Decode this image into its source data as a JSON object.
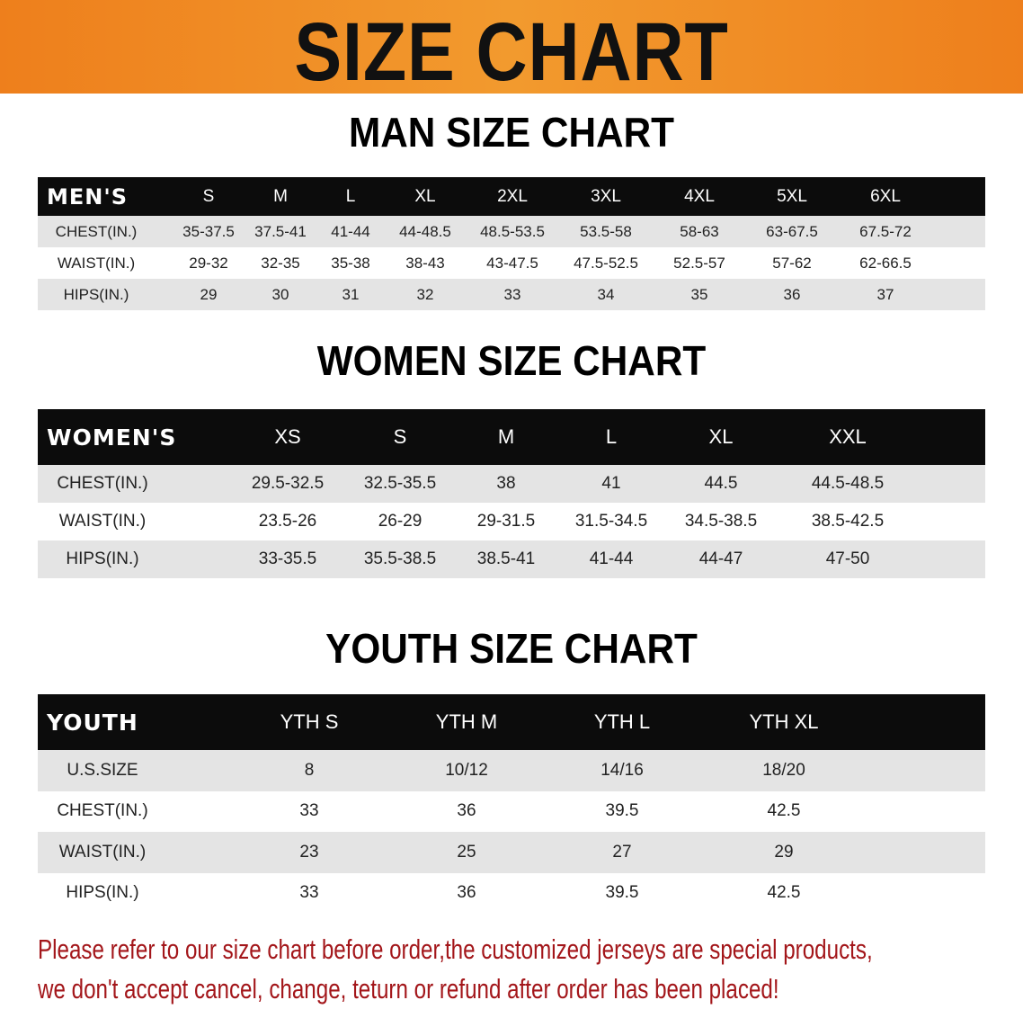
{
  "banner": {
    "title": "SIZE CHART",
    "color": "#ee7f1c"
  },
  "men": {
    "title": "MAN SIZE CHART",
    "header_label": "MEN'S",
    "sizes": [
      "S",
      "M",
      "L",
      "XL",
      "2XL",
      "3XL",
      "4XL",
      "5XL",
      "6XL"
    ],
    "rows": [
      {
        "label": "CHEST(IN.)",
        "values": [
          "35-37.5",
          "37.5-41",
          "41-44",
          "44-48.5",
          "48.5-53.5",
          "53.5-58",
          "58-63",
          "63-67.5",
          "67.5-72"
        ]
      },
      {
        "label": "WAIST(IN.)",
        "values": [
          "29-32",
          "32-35",
          "35-38",
          "38-43",
          "43-47.5",
          "47.5-52.5",
          "52.5-57",
          "57-62",
          "62-66.5"
        ]
      },
      {
        "label": "HIPS(IN.)",
        "values": [
          "29",
          "30",
          "31",
          "32",
          "33",
          "34",
          "35",
          "36",
          "37"
        ]
      }
    ]
  },
  "women": {
    "title": "WOMEN SIZE CHART",
    "header_label": "WOMEN'S",
    "sizes": [
      "XS",
      "S",
      "M",
      "L",
      "XL",
      "XXL"
    ],
    "rows": [
      {
        "label": "CHEST(IN.)",
        "values": [
          "29.5-32.5",
          "32.5-35.5",
          "38",
          "41",
          "44.5",
          "44.5-48.5"
        ]
      },
      {
        "label": "WAIST(IN.)",
        "values": [
          "23.5-26",
          "26-29",
          "29-31.5",
          "31.5-34.5",
          "34.5-38.5",
          "38.5-42.5"
        ]
      },
      {
        "label": "HIPS(IN.)",
        "values": [
          "33-35.5",
          "35.5-38.5",
          "38.5-41",
          "41-44",
          "44-47",
          "47-50"
        ]
      }
    ]
  },
  "youth": {
    "title": "YOUTH SIZE CHART",
    "header_label": "YOUTH",
    "sizes": [
      "YTH S",
      "YTH M",
      "YTH L",
      "YTH XL"
    ],
    "rows": [
      {
        "label": "U.S.SIZE",
        "values": [
          "8",
          "10/12",
          "14/16",
          "18/20"
        ]
      },
      {
        "label": "CHEST(IN.)",
        "values": [
          "33",
          "36",
          "39.5",
          "42.5"
        ]
      },
      {
        "label": "WAIST(IN.)",
        "values": [
          "23",
          "25",
          "27",
          "29"
        ]
      },
      {
        "label": "HIPS(IN.)",
        "values": [
          "33",
          "36",
          "39.5",
          "42.5"
        ]
      }
    ]
  },
  "notice": {
    "line1": "Please refer to our size chart before order,the customized jerseys are special products,",
    "line2": "we don't accept cancel, change, teturn or refund after order has been placed!",
    "color": "#a3161a"
  }
}
